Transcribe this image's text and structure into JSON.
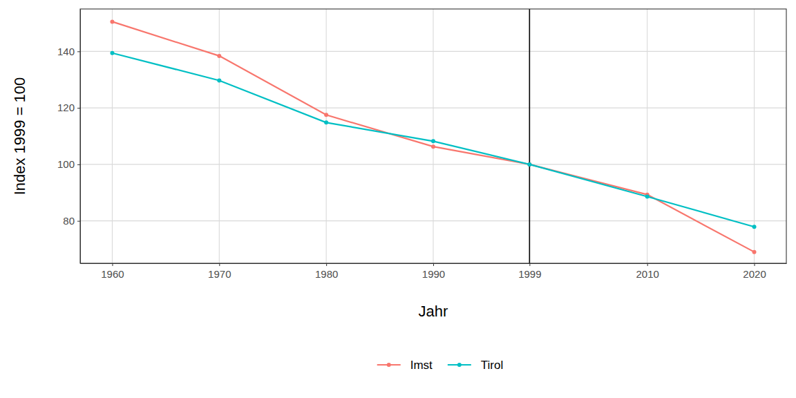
{
  "chart_data": {
    "type": "line",
    "x_label": "Jahr",
    "y_label": "Index 1999 = 100",
    "x": [
      1960,
      1970,
      1980,
      1990,
      1999,
      2010,
      2020
    ],
    "series": [
      {
        "name": "Imst",
        "color": "#F8766D",
        "marker": "circle",
        "line_style": "solid",
        "values": [
          150.5,
          138.4,
          117.5,
          106.3,
          100,
          89.3,
          69.0
        ]
      },
      {
        "name": "Tirol",
        "color": "#00BFC4",
        "marker": "circle",
        "line_style": "solid",
        "values": [
          139.4,
          129.7,
          114.8,
          108.2,
          100,
          88.6,
          77.9
        ]
      }
    ],
    "xlim": [
      1957,
      2023
    ],
    "xticks": [
      1960,
      1970,
      1980,
      1990,
      1999,
      2010,
      2020
    ],
    "ylim": [
      65,
      155
    ],
    "yticks": [
      80,
      100,
      120,
      140
    ],
    "reference_line_x": 1999,
    "grid": true,
    "legend": "bottom"
  }
}
